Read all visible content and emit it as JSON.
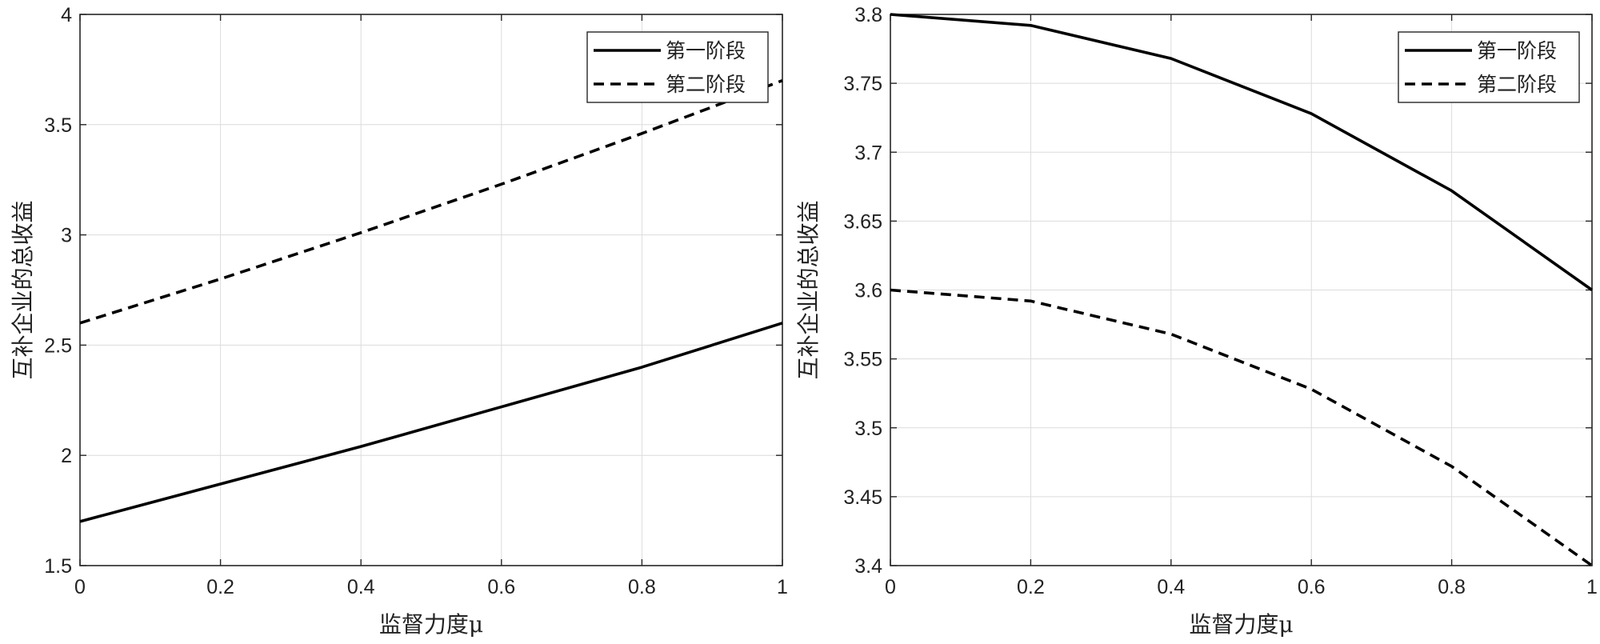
{
  "chart_data": [
    {
      "type": "line",
      "xlabel": "监督力度μ",
      "ylabel": "互补企业的总收益",
      "xlim": [
        0,
        1
      ],
      "ylim": [
        1.5,
        4
      ],
      "xticks": [
        "0",
        "0.2",
        "0.4",
        "0.6",
        "0.8",
        "1"
      ],
      "yticks": [
        "1.5",
        "2",
        "2.5",
        "3",
        "3.5",
        "4"
      ],
      "grid": true,
      "legend_position": "top-right",
      "series": [
        {
          "name": "第一阶段",
          "style": "solid",
          "x": [
            0,
            0.2,
            0.4,
            0.6,
            0.8,
            1
          ],
          "y": [
            1.7,
            1.87,
            2.04,
            2.22,
            2.4,
            2.6
          ]
        },
        {
          "name": "第二阶段",
          "style": "dashed",
          "x": [
            0,
            0.2,
            0.4,
            0.6,
            0.8,
            1
          ],
          "y": [
            2.6,
            2.8,
            3.01,
            3.23,
            3.46,
            3.7
          ]
        }
      ]
    },
    {
      "type": "line",
      "xlabel": "监督力度μ",
      "ylabel": "互补企业的总收益",
      "xlim": [
        0,
        1
      ],
      "ylim": [
        3.4,
        3.8
      ],
      "xticks": [
        "0",
        "0.2",
        "0.4",
        "0.6",
        "0.8",
        "1"
      ],
      "yticks": [
        "3.4",
        "3.45",
        "3.5",
        "3.55",
        "3.6",
        "3.65",
        "3.7",
        "3.75",
        "3.8"
      ],
      "grid": true,
      "legend_position": "top-right",
      "series": [
        {
          "name": "第一阶段",
          "style": "solid",
          "x": [
            0,
            0.2,
            0.4,
            0.6,
            0.8,
            1
          ],
          "y": [
            3.8,
            3.792,
            3.768,
            3.728,
            3.672,
            3.6
          ]
        },
        {
          "name": "第二阶段",
          "style": "dashed",
          "x": [
            0,
            0.2,
            0.4,
            0.6,
            0.8,
            1
          ],
          "y": [
            3.6,
            3.592,
            3.568,
            3.528,
            3.472,
            3.4
          ]
        }
      ]
    }
  ],
  "colors": {
    "line": "#000000",
    "grid": "#dcdcdc",
    "axis": "#262626"
  }
}
